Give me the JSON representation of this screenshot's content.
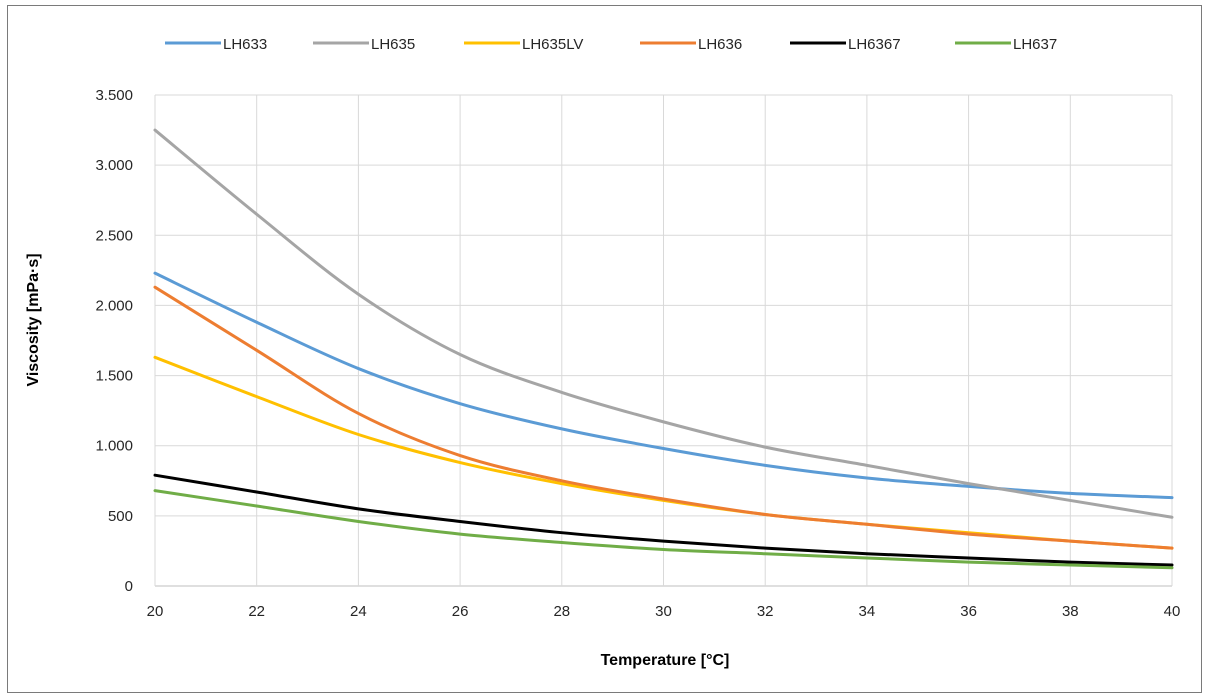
{
  "chart_data": {
    "type": "line",
    "xlabel": "Temperature [°C]",
    "ylabel": "Viscosity [mPa·s]",
    "xlim": [
      20,
      40
    ],
    "ylim": [
      0,
      3500
    ],
    "x_ticks": [
      20,
      22,
      24,
      26,
      28,
      30,
      32,
      34,
      36,
      38,
      40
    ],
    "x_tick_labels": [
      "20",
      "22",
      "24",
      "26",
      "28",
      "30",
      "32",
      "34",
      "36",
      "38",
      "40"
    ],
    "y_ticks": [
      0,
      500,
      1000,
      1500,
      2000,
      2500,
      3000,
      3500
    ],
    "y_tick_labels": [
      "0",
      "500",
      "1.000",
      "1.500",
      "2.000",
      "2.500",
      "3.000",
      "3.500"
    ],
    "grid": true,
    "legend_position": "top",
    "x": [
      20,
      22,
      24,
      26,
      28,
      30,
      32,
      34,
      36,
      38,
      40
    ],
    "series": [
      {
        "name": "LH633",
        "color": "#5b9bd5",
        "values": [
          2230,
          1880,
          1550,
          1300,
          1120,
          980,
          860,
          770,
          710,
          660,
          630
        ]
      },
      {
        "name": "LH635",
        "color": "#a5a5a5",
        "values": [
          3250,
          2650,
          2080,
          1650,
          1380,
          1170,
          990,
          860,
          730,
          610,
          490
        ]
      },
      {
        "name": "LH635LV",
        "color": "#ffc000",
        "values": [
          1630,
          1350,
          1080,
          880,
          730,
          610,
          510,
          440,
          380,
          320,
          270
        ]
      },
      {
        "name": "LH636",
        "color": "#ed7d31",
        "values": [
          2130,
          1680,
          1230,
          930,
          750,
          620,
          510,
          440,
          370,
          320,
          270
        ]
      },
      {
        "name": "LH6367",
        "color": "#000000",
        "values": [
          790,
          670,
          550,
          460,
          380,
          320,
          270,
          230,
          200,
          170,
          150
        ]
      },
      {
        "name": "LH637",
        "color": "#70ad47",
        "values": [
          680,
          570,
          460,
          370,
          310,
          260,
          230,
          200,
          170,
          150,
          130
        ]
      }
    ]
  }
}
